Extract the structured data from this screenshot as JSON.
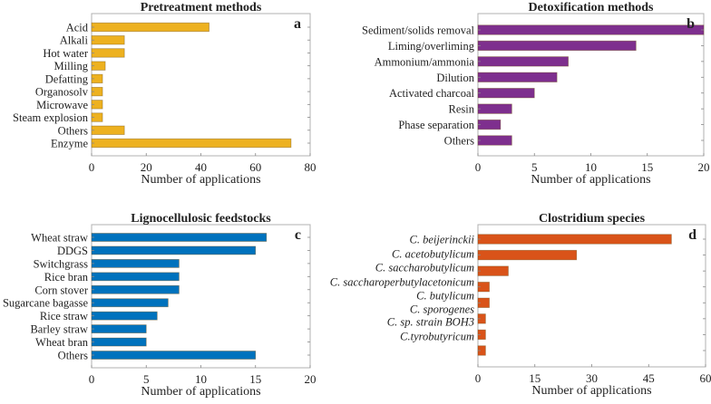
{
  "chart_data": [
    {
      "type": "bar",
      "orientation": "horizontal",
      "panel": "a",
      "title": "Pretreatment methods",
      "xlabel": "Number of applications",
      "ylabel": "",
      "xlim": [
        0,
        80
      ],
      "xticks": [
        0,
        20,
        40,
        60,
        80
      ],
      "color": "#EDB120",
      "italic_labels": false,
      "categories": [
        "Acid",
        "Alkali",
        "Hot water",
        "Milling",
        "Defatting",
        "Organosolv",
        "Microwave",
        "Steam explosion",
        "Others",
        "Enzyme"
      ],
      "values": [
        43,
        12,
        12,
        5,
        4,
        4,
        4,
        4,
        12,
        73
      ]
    },
    {
      "type": "bar",
      "orientation": "horizontal",
      "panel": "b",
      "title": "Detoxification methods",
      "xlabel": "Number of applications",
      "ylabel": "",
      "xlim": [
        0,
        20
      ],
      "xticks": [
        0,
        5,
        10,
        15,
        20
      ],
      "color": "#7E2F8E",
      "italic_labels": false,
      "categories": [
        "Sediment/solids removal",
        "Liming/overliming",
        "Ammonium/ammonia",
        "Dilution",
        "Activated charcoal",
        "Resin",
        "Phase separation",
        "Others"
      ],
      "values": [
        20,
        14,
        8,
        7,
        5,
        3,
        2,
        3
      ]
    },
    {
      "type": "bar",
      "orientation": "horizontal",
      "panel": "c",
      "title": "Lignocellulosic feedstocks",
      "xlabel": "Number of applications",
      "ylabel": "",
      "xlim": [
        0,
        20
      ],
      "xticks": [
        0,
        5,
        10,
        15,
        20
      ],
      "color": "#0072BD",
      "italic_labels": false,
      "categories": [
        "Wheat straw",
        "DDGS",
        "Switchgrass",
        "Rice bran",
        "Corn stover",
        "Sugarcane bagasse",
        "Rice straw",
        "Barley straw",
        "Wheat bran",
        "Others"
      ],
      "values": [
        16,
        15,
        8,
        8,
        8,
        7,
        6,
        5,
        5,
        15
      ]
    },
    {
      "type": "bar",
      "orientation": "horizontal",
      "panel": "d",
      "title": "Clostridium species",
      "xlabel": "Number of applications",
      "ylabel": "",
      "xlim": [
        0,
        60
      ],
      "xticks": [
        0,
        15,
        30,
        45,
        60
      ],
      "color": "#D95319",
      "italic_labels": true,
      "categories": [
        "C. beijerinckii",
        "C. acetobutylicum",
        "C. saccharobutylicum",
        "C. saccharoperbutylacetonicum",
        "C. butylicum",
        "C. sporogenes",
        "C. sp. strain BOH3",
        "C.tyrobutyricum"
      ],
      "values": [
        51,
        26,
        8,
        3,
        3,
        2,
        2,
        2
      ]
    }
  ]
}
